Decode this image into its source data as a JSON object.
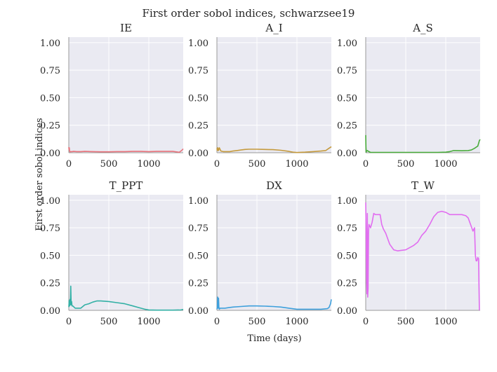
{
  "figure": {
    "title": "First order sobol indices, schwarzsee19",
    "xlabel": "Time (days)",
    "ylabel": "First order sobol indices"
  },
  "chart_data": [
    {
      "type": "line",
      "title": "IE",
      "color": "#e8727a",
      "xlim": [
        0,
        1430
      ],
      "ylim": [
        0,
        1.05
      ],
      "xticks": [
        0,
        500,
        1000
      ],
      "yticks": [
        0.0,
        0.25,
        0.5,
        0.75,
        1.0
      ],
      "ytick_labels": [
        "0.00",
        "0.25",
        "0.50",
        "0.75",
        "1.00"
      ],
      "grid": true,
      "x": [
        0,
        3,
        6,
        10,
        15,
        25,
        40,
        60,
        100,
        150,
        200,
        300,
        400,
        500,
        600,
        700,
        800,
        900,
        1000,
        1100,
        1200,
        1300,
        1380,
        1410,
        1430
      ],
      "y": [
        0.05,
        0.03,
        0.045,
        0.015,
        0.008,
        0.01,
        0.01,
        0.012,
        0.01,
        0.01,
        0.012,
        0.01,
        0.008,
        0.008,
        0.01,
        0.01,
        0.012,
        0.012,
        0.01,
        0.012,
        0.012,
        0.012,
        0.004,
        0.02,
        0.035
      ]
    },
    {
      "type": "line",
      "title": "A_I",
      "color": "#c59a3d",
      "xlim": [
        0,
        1430
      ],
      "ylim": [
        0,
        1.05
      ],
      "xticks": [
        0,
        500,
        1000
      ],
      "yticks": [
        0.0,
        0.25,
        0.5,
        0.75,
        1.0
      ],
      "ytick_labels": [
        "0.00",
        "0.25",
        "0.50",
        "0.75",
        "1.00"
      ],
      "grid": true,
      "x": [
        0,
        5,
        10,
        20,
        30,
        50,
        80,
        120,
        160,
        200,
        250,
        300,
        350,
        400,
        500,
        600,
        700,
        800,
        900,
        950,
        1000,
        1100,
        1200,
        1300,
        1360,
        1400,
        1430
      ],
      "y": [
        0.04,
        0.02,
        0.045,
        0.02,
        0.045,
        0.015,
        0.01,
        0.01,
        0.01,
        0.015,
        0.02,
        0.025,
        0.03,
        0.032,
        0.032,
        0.03,
        0.028,
        0.022,
        0.012,
        0.005,
        0.002,
        0.005,
        0.01,
        0.015,
        0.02,
        0.04,
        0.055
      ]
    },
    {
      "type": "line",
      "title": "A_S",
      "color": "#48ab3a",
      "xlim": [
        0,
        1430
      ],
      "ylim": [
        0,
        1.05
      ],
      "xticks": [
        0,
        500,
        1000
      ],
      "yticks": [
        0.0,
        0.25,
        0.5,
        0.75,
        1.0
      ],
      "ytick_labels": [
        "0.00",
        "0.25",
        "0.50",
        "0.75",
        "1.00"
      ],
      "grid": true,
      "x": [
        0,
        3,
        6,
        10,
        20,
        40,
        60,
        100,
        200,
        300,
        400,
        500,
        600,
        700,
        800,
        900,
        1000,
        1050,
        1100,
        1200,
        1280,
        1320,
        1360,
        1380,
        1400,
        1420,
        1430
      ],
      "y": [
        0.16,
        0.05,
        0.005,
        0.015,
        0.02,
        0.01,
        0.003,
        0.003,
        0.003,
        0.003,
        0.003,
        0.003,
        0.003,
        0.003,
        0.003,
        0.003,
        0.005,
        0.01,
        0.02,
        0.018,
        0.02,
        0.025,
        0.04,
        0.05,
        0.06,
        0.11,
        0.12
      ]
    },
    {
      "type": "line",
      "title": "T_PPT",
      "color": "#33b0a5",
      "xlim": [
        0,
        1430
      ],
      "ylim": [
        0,
        1.05
      ],
      "xticks": [
        0,
        500,
        1000
      ],
      "yticks": [
        0.0,
        0.25,
        0.5,
        0.75,
        1.0
      ],
      "ytick_labels": [
        "0.00",
        "0.25",
        "0.50",
        "0.75",
        "1.00"
      ],
      "grid": true,
      "x": [
        0,
        5,
        10,
        15,
        20,
        25,
        30,
        35,
        40,
        50,
        80,
        120,
        150,
        200,
        250,
        300,
        350,
        400,
        500,
        600,
        700,
        800,
        900,
        950,
        1000,
        1100,
        1200,
        1300,
        1400,
        1430
      ],
      "y": [
        0.03,
        0.09,
        0.04,
        0.1,
        0.05,
        0.22,
        0.05,
        0.08,
        0.04,
        0.04,
        0.02,
        0.02,
        0.02,
        0.05,
        0.06,
        0.075,
        0.085,
        0.085,
        0.08,
        0.07,
        0.06,
        0.04,
        0.02,
        0.01,
        0.004,
        0.002,
        0.002,
        0.002,
        0.004,
        0.008
      ]
    },
    {
      "type": "line",
      "title": "DX",
      "color": "#3ea0dc",
      "xlim": [
        0,
        1430
      ],
      "ylim": [
        0,
        1.05
      ],
      "xticks": [
        0,
        500,
        1000
      ],
      "yticks": [
        0.0,
        0.25,
        0.5,
        0.75,
        1.0
      ],
      "ytick_labels": [
        "0.00",
        "0.25",
        "0.50",
        "0.75",
        "1.00"
      ],
      "grid": true,
      "x": [
        0,
        5,
        10,
        15,
        20,
        25,
        30,
        40,
        60,
        100,
        150,
        200,
        300,
        400,
        500,
        600,
        700,
        800,
        900,
        1000,
        1100,
        1200,
        1300,
        1380,
        1400,
        1420,
        1430
      ],
      "y": [
        0.01,
        0.03,
        0.12,
        0.02,
        0.11,
        0.03,
        0.01,
        0.02,
        0.02,
        0.02,
        0.025,
        0.03,
        0.035,
        0.04,
        0.04,
        0.038,
        0.035,
        0.03,
        0.02,
        0.01,
        0.01,
        0.01,
        0.01,
        0.015,
        0.025,
        0.06,
        0.1
      ]
    },
    {
      "type": "line",
      "title": "T_W",
      "color": "#e16df0",
      "xlim": [
        0,
        1430
      ],
      "ylim": [
        0,
        1.05
      ],
      "xticks": [
        0,
        500,
        1000
      ],
      "yticks": [
        0.0,
        0.25,
        0.5,
        0.75,
        1.0
      ],
      "ytick_labels": [
        "0.00",
        "0.25",
        "0.50",
        "0.75",
        "1.00"
      ],
      "grid": true,
      "x": [
        0,
        5,
        10,
        15,
        20,
        25,
        30,
        35,
        40,
        60,
        80,
        100,
        120,
        150,
        180,
        200,
        220,
        250,
        300,
        350,
        400,
        500,
        600,
        650,
        700,
        750,
        800,
        850,
        900,
        950,
        1000,
        1050,
        1100,
        1150,
        1200,
        1250,
        1280,
        1300,
        1320,
        1340,
        1360,
        1370,
        1380,
        1390,
        1400,
        1410,
        1420
      ],
      "y": [
        0.98,
        0.7,
        0.3,
        0.15,
        0.88,
        0.12,
        0.2,
        0.7,
        0.78,
        0.75,
        0.8,
        0.88,
        0.87,
        0.87,
        0.87,
        0.78,
        0.74,
        0.7,
        0.6,
        0.55,
        0.54,
        0.55,
        0.59,
        0.62,
        0.68,
        0.72,
        0.78,
        0.85,
        0.89,
        0.9,
        0.89,
        0.87,
        0.87,
        0.87,
        0.87,
        0.86,
        0.84,
        0.8,
        0.76,
        0.72,
        0.75,
        0.5,
        0.45,
        0.45,
        0.48,
        0.47,
        0.0
      ]
    }
  ]
}
